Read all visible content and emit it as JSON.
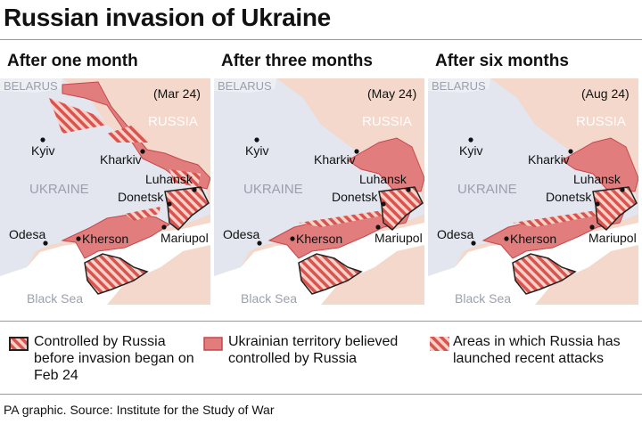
{
  "title": "Russian invasion of Ukraine",
  "panels": [
    {
      "heading": "After one month",
      "date": "(Mar 24)",
      "north_occupied": true
    },
    {
      "heading": "After three months",
      "date": "(May 24)",
      "north_occupied": false
    },
    {
      "heading": "After six months",
      "date": "(Aug 24)",
      "north_occupied": false
    }
  ],
  "labels": {
    "belarus": "BELARUS",
    "russia": "RUSSIA",
    "ukraine": "UKRAINE",
    "black_sea": "Black Sea",
    "cities": {
      "kyiv": "Kyiv",
      "kharkiv": "Kharkiv",
      "luhansk": "Luhansk",
      "donetsk": "Donetsk",
      "mariupol": "Mariupol",
      "kherson": "Kherson",
      "odesa": "Odesa"
    }
  },
  "legend": [
    {
      "label": "Controlled by Russia before invasion began on Feb 24",
      "style": "hatched-outlined"
    },
    {
      "label": "Ukrainian territory believed controlled by Russia",
      "style": "solid"
    },
    {
      "label": "Areas in which Russia has launched recent attacks",
      "style": "hatched"
    }
  ],
  "colors": {
    "ukraine": "#e3e6ee",
    "russia": "#f3d8cb",
    "occupied": "#e27d7e",
    "occupied_stroke": "#c5474a",
    "hatch": "#d9534f"
  },
  "footer": "PA graphic. Source: Institute for the Study of War"
}
